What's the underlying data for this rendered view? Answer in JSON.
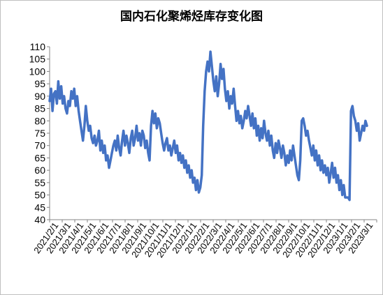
{
  "chart_data": {
    "type": "line",
    "title": "国内石化聚烯烃库存变化图",
    "xlabel": "",
    "ylabel": "",
    "ylim": [
      40,
      110
    ],
    "yticks": [
      40,
      45,
      50,
      55,
      60,
      65,
      70,
      75,
      80,
      85,
      90,
      95,
      100,
      105,
      110
    ],
    "grid": false,
    "legend": "none",
    "colors": {
      "line": "#4472c4",
      "axis": "#868686"
    },
    "x_tick_labels": [
      "2021/2/1",
      "2021/3/1",
      "2021/4/1",
      "2021/5/1",
      "2021/6/1",
      "2021/7/1",
      "2021/8/1",
      "2021/9/1",
      "2021/10/1",
      "2021/11/1",
      "2021/12/1",
      "2022/1/1",
      "2022/2/1",
      "2022/3/1",
      "2022/4/1",
      "2022/5/1",
      "2022/6/1",
      "2022/7/1",
      "2022/8/1",
      "2022/9/1",
      "2022/10/1",
      "2022/11/1",
      "2022/12/1",
      "2023/1/1",
      "2023/2/1",
      "2023/3/1"
    ],
    "series": [
      {
        "values": [
          [
            0,
            88
          ],
          [
            1,
            93
          ],
          [
            2,
            84
          ],
          [
            3,
            91
          ],
          [
            4,
            92
          ],
          [
            5,
            87
          ],
          [
            6,
            96
          ],
          [
            7,
            89
          ],
          [
            8,
            94
          ],
          [
            9,
            87
          ],
          [
            10,
            90
          ],
          [
            11,
            85
          ],
          [
            12,
            83
          ],
          [
            13,
            88
          ],
          [
            14,
            86
          ],
          [
            15,
            92
          ],
          [
            16,
            89
          ],
          [
            17,
            93
          ],
          [
            18,
            86
          ],
          [
            19,
            90
          ],
          [
            20,
            84
          ],
          [
            21,
            80
          ],
          [
            22,
            76
          ],
          [
            23,
            72
          ],
          [
            24,
            78
          ],
          [
            25,
            86
          ],
          [
            26,
            80
          ],
          [
            27,
            76
          ],
          [
            28,
            78
          ],
          [
            29,
            73
          ],
          [
            30,
            71
          ],
          [
            31,
            74
          ],
          [
            32,
            70
          ],
          [
            33,
            72
          ],
          [
            34,
            76
          ],
          [
            35,
            68
          ],
          [
            36,
            72
          ],
          [
            37,
            67
          ],
          [
            38,
            70
          ],
          [
            39,
            64
          ],
          [
            40,
            66
          ],
          [
            41,
            61
          ],
          [
            42,
            64
          ],
          [
            43,
            67
          ],
          [
            44,
            70
          ],
          [
            45,
            72
          ],
          [
            46,
            68
          ],
          [
            47,
            74
          ],
          [
            48,
            69
          ],
          [
            49,
            66
          ],
          [
            50,
            72
          ],
          [
            51,
            76
          ],
          [
            52,
            70
          ],
          [
            53,
            74
          ],
          [
            54,
            71
          ],
          [
            55,
            67
          ],
          [
            56,
            73
          ],
          [
            57,
            76
          ],
          [
            58,
            70
          ],
          [
            59,
            73
          ],
          [
            60,
            78
          ],
          [
            61,
            72
          ],
          [
            62,
            75
          ],
          [
            63,
            70
          ],
          [
            64,
            76
          ],
          [
            65,
            74
          ],
          [
            66,
            69
          ],
          [
            67,
            72
          ],
          [
            68,
            67
          ],
          [
            69,
            64
          ],
          [
            70,
            78
          ],
          [
            71,
            84
          ],
          [
            72,
            79
          ],
          [
            73,
            83
          ],
          [
            74,
            77
          ],
          [
            75,
            81
          ],
          [
            76,
            79
          ],
          [
            77,
            75
          ],
          [
            78,
            71
          ],
          [
            79,
            68
          ],
          [
            80,
            71
          ],
          [
            81,
            73
          ],
          [
            82,
            68
          ],
          [
            83,
            70
          ],
          [
            84,
            66
          ],
          [
            85,
            69
          ],
          [
            86,
            72
          ],
          [
            87,
            67
          ],
          [
            88,
            70
          ],
          [
            89,
            64
          ],
          [
            90,
            67
          ],
          [
            91,
            63
          ],
          [
            92,
            66
          ],
          [
            93,
            61
          ],
          [
            94,
            64
          ],
          [
            95,
            59
          ],
          [
            96,
            62
          ],
          [
            97,
            57
          ],
          [
            98,
            60
          ],
          [
            99,
            55
          ],
          [
            100,
            57
          ],
          [
            101,
            52
          ],
          [
            102,
            56
          ],
          [
            103,
            51
          ],
          [
            104,
            53
          ],
          [
            105,
            58
          ],
          [
            106,
            78
          ],
          [
            107,
            92
          ],
          [
            108,
            100
          ],
          [
            109,
            104
          ],
          [
            110,
            100
          ],
          [
            111,
            108
          ],
          [
            112,
            102
          ],
          [
            113,
            96
          ],
          [
            114,
            92
          ],
          [
            115,
            98
          ],
          [
            116,
            90
          ],
          [
            117,
            95
          ],
          [
            118,
            103
          ],
          [
            119,
            97
          ],
          [
            120,
            101
          ],
          [
            121,
            93
          ],
          [
            122,
            88
          ],
          [
            123,
            92
          ],
          [
            124,
            85
          ],
          [
            125,
            90
          ],
          [
            126,
            87
          ],
          [
            127,
            93
          ],
          [
            128,
            86
          ],
          [
            129,
            80
          ],
          [
            130,
            84
          ],
          [
            131,
            79
          ],
          [
            132,
            82
          ],
          [
            133,
            77
          ],
          [
            134,
            80
          ],
          [
            135,
            84
          ],
          [
            136,
            81
          ],
          [
            137,
            86
          ],
          [
            138,
            82
          ],
          [
            139,
            78
          ],
          [
            140,
            83
          ],
          [
            141,
            77
          ],
          [
            142,
            81
          ],
          [
            143,
            74
          ],
          [
            144,
            78
          ],
          [
            145,
            72
          ],
          [
            146,
            77
          ],
          [
            147,
            73
          ],
          [
            148,
            80
          ],
          [
            149,
            75
          ],
          [
            150,
            72
          ],
          [
            151,
            76
          ],
          [
            152,
            70
          ],
          [
            153,
            74
          ],
          [
            154,
            68
          ],
          [
            155,
            65
          ],
          [
            156,
            71
          ],
          [
            157,
            67
          ],
          [
            158,
            72
          ],
          [
            159,
            69
          ],
          [
            160,
            65
          ],
          [
            161,
            70
          ],
          [
            162,
            67
          ],
          [
            163,
            62
          ],
          [
            164,
            66
          ],
          [
            165,
            63
          ],
          [
            166,
            68
          ],
          [
            167,
            64
          ],
          [
            168,
            70
          ],
          [
            169,
            66
          ],
          [
            170,
            62
          ],
          [
            171,
            58
          ],
          [
            172,
            56
          ],
          [
            173,
            64
          ],
          [
            174,
            80
          ],
          [
            175,
            81
          ],
          [
            176,
            78
          ],
          [
            177,
            74
          ],
          [
            178,
            76
          ],
          [
            179,
            72
          ],
          [
            180,
            69
          ],
          [
            181,
            66
          ],
          [
            182,
            70
          ],
          [
            183,
            64
          ],
          [
            184,
            68
          ],
          [
            185,
            62
          ],
          [
            186,
            66
          ],
          [
            187,
            60
          ],
          [
            188,
            64
          ],
          [
            189,
            59
          ],
          [
            190,
            62
          ],
          [
            191,
            58
          ],
          [
            192,
            61
          ],
          [
            193,
            55
          ],
          [
            194,
            59
          ],
          [
            195,
            63
          ],
          [
            196,
            57
          ],
          [
            197,
            61
          ],
          [
            198,
            55
          ],
          [
            199,
            58
          ],
          [
            200,
            52
          ],
          [
            201,
            56
          ],
          [
            202,
            50
          ],
          [
            203,
            54
          ],
          [
            204,
            49
          ],
          [
            205,
            49
          ],
          [
            206,
            49
          ],
          [
            207,
            48
          ],
          [
            208,
            84
          ],
          [
            209,
            86
          ],
          [
            210,
            82
          ],
          [
            211,
            80
          ],
          [
            212,
            76
          ],
          [
            213,
            79
          ],
          [
            214,
            72
          ],
          [
            215,
            75
          ],
          [
            216,
            78
          ],
          [
            217,
            76
          ],
          [
            218,
            80
          ],
          [
            219,
            78
          ]
        ]
      }
    ]
  }
}
